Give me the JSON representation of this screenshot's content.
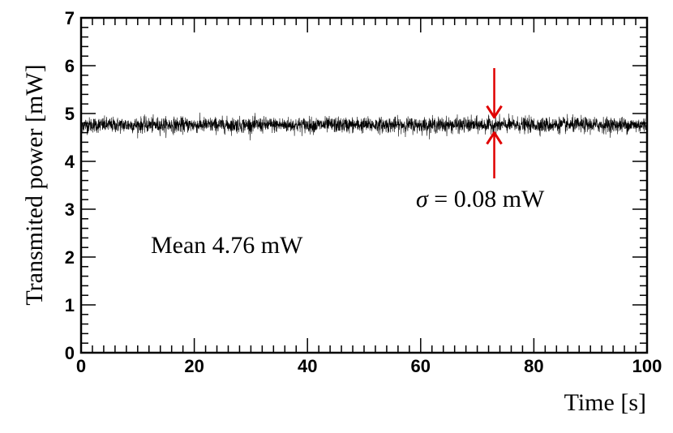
{
  "chart_data": {
    "type": "line",
    "title": "",
    "xlabel": "Time [s]",
    "ylabel": "Transmited power [mW]",
    "xlim": [
      0,
      100
    ],
    "ylim": [
      0,
      7
    ],
    "x_ticks": [
      0,
      20,
      40,
      60,
      80,
      100
    ],
    "y_ticks": [
      0,
      1,
      2,
      3,
      4,
      5,
      6,
      7
    ],
    "x_tick_labels": [
      "0",
      "20",
      "40",
      "60",
      "80",
      "100"
    ],
    "y_tick_labels": [
      "0",
      "1",
      "2",
      "3",
      "4",
      "5",
      "6",
      "7"
    ],
    "grid": false,
    "series": [
      {
        "color": "#000000",
        "mean": 4.76,
        "sigma": 0.08,
        "x_start": 0,
        "x_end": 100,
        "y_min_visible": 4.4,
        "y_max_visible": 5.02
      }
    ],
    "annotations": {
      "mean_text": "Mean 4.76 mW",
      "sigma_text": "σ = 0.08 mW",
      "sigma_symbol": "σ",
      "sigma_rest": " = 0.08 mW",
      "arrow_x": 73,
      "arrow_color": "#e00000"
    }
  }
}
